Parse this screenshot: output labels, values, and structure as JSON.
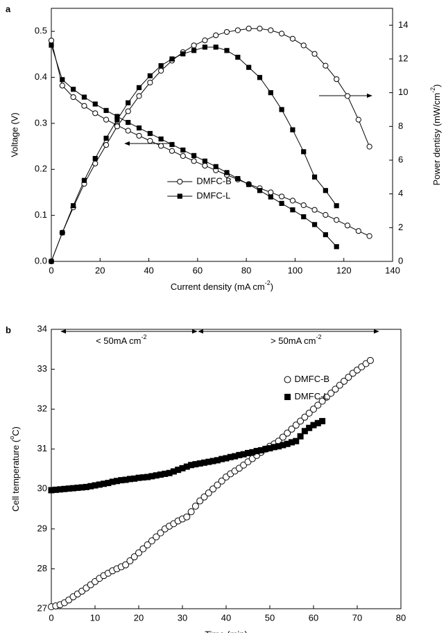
{
  "chart_data": [
    {
      "type": "line",
      "label": "a",
      "xlabel": [
        "Current density (mA cm",
        "-2",
        ")"
      ],
      "ylabel": "Voltage (V)",
      "y2label": [
        "Power dentisy (mW/cm",
        "-2",
        ")"
      ],
      "xlim": [
        0,
        140
      ],
      "xticks": [
        0,
        20,
        40,
        60,
        80,
        100,
        120,
        140
      ],
      "ylim": [
        0,
        0.55
      ],
      "yticks": [
        {
          "value": 0,
          "label": "0.0"
        },
        0.1,
        0.2,
        0.3,
        0.4,
        0.5
      ],
      "y2lim": [
        0,
        15
      ],
      "y2ticks": [
        0,
        2,
        4,
        6,
        8,
        10,
        12,
        14
      ],
      "legend": "lower center",
      "series": [
        {
          "name": "DMFC-B",
          "color": "#000000",
          "marker": "circle-open",
          "axis": "y",
          "x": [
            0,
            4.5,
            9,
            13.5,
            18,
            22.5,
            27,
            31.5,
            36,
            40.5,
            45,
            49.5,
            54,
            58.5,
            63,
            67.5,
            72,
            76.5,
            81,
            85.5,
            90,
            94.5,
            99,
            103.5,
            108,
            112.5,
            117,
            121.5,
            126,
            130.5
          ],
          "values": [
            0.48,
            0.382,
            0.357,
            0.338,
            0.322,
            0.308,
            0.296,
            0.284,
            0.273,
            0.262,
            0.251,
            0.24,
            0.229,
            0.218,
            0.208,
            0.198,
            0.188,
            0.178,
            0.168,
            0.159,
            0.15,
            0.141,
            0.132,
            0.122,
            0.112,
            0.101,
            0.09,
            0.078,
            0.066,
            0.055
          ]
        },
        {
          "name": "DMFC-L",
          "color": "#000000",
          "marker": "square",
          "axis": "y",
          "x": [
            0,
            4.5,
            9,
            13.5,
            18,
            22.5,
            27,
            31.5,
            36,
            40.5,
            45,
            49.5,
            54,
            58.5,
            63,
            67.5,
            72,
            76.5,
            81,
            85.5,
            90,
            94.5,
            99,
            103.5,
            108,
            112.5,
            117
          ],
          "values": [
            0.47,
            0.395,
            0.374,
            0.357,
            0.342,
            0.328,
            0.315,
            0.302,
            0.29,
            0.278,
            0.266,
            0.254,
            0.242,
            0.23,
            0.218,
            0.206,
            0.193,
            0.18,
            0.167,
            0.154,
            0.14,
            0.126,
            0.112,
            0.097,
            0.08,
            0.058,
            0.032
          ]
        },
        {
          "name": "DMFC-B",
          "color": "#000000",
          "marker": "circle-open",
          "axis": "y2",
          "x": [
            0,
            4.5,
            9,
            13.5,
            18,
            22.5,
            27,
            31.5,
            36,
            40.5,
            45,
            49.5,
            54,
            58.5,
            63,
            67.5,
            72,
            76.5,
            81,
            85.5,
            90,
            94.5,
            99,
            103.5,
            108,
            112.5,
            117,
            121.5,
            126,
            130.5
          ],
          "values": [
            0,
            1.7,
            3.2,
            4.6,
            5.8,
            6.9,
            8.0,
            8.9,
            9.8,
            10.6,
            11.3,
            11.9,
            12.4,
            12.8,
            13.1,
            13.4,
            13.6,
            13.7,
            13.8,
            13.8,
            13.7,
            13.5,
            13.2,
            12.8,
            12.3,
            11.6,
            10.8,
            9.8,
            8.4,
            6.8
          ]
        },
        {
          "name": "DMFC-L",
          "color": "#000000",
          "marker": "square",
          "axis": "y2",
          "x": [
            0,
            4.5,
            9,
            13.5,
            18,
            22.5,
            27,
            31.5,
            36,
            40.5,
            45,
            49.5,
            54,
            58.5,
            63,
            67.5,
            72,
            76.5,
            81,
            85.5,
            90,
            94.5,
            99,
            103.5,
            108,
            112.5,
            117
          ],
          "values": [
            0,
            1.7,
            3.3,
            4.8,
            6.1,
            7.3,
            8.4,
            9.4,
            10.3,
            11.0,
            11.6,
            12.0,
            12.3,
            12.5,
            12.7,
            12.7,
            12.5,
            12.1,
            11.5,
            10.9,
            10.0,
            9.0,
            7.8,
            6.5,
            5.0,
            4.2,
            3.3
          ]
        }
      ]
    },
    {
      "type": "scatter",
      "label": "b",
      "xlabel": "Time (min)",
      "ylabel": [
        "Cell temperature (",
        "o",
        "C)"
      ],
      "xlim": [
        0,
        80
      ],
      "xticks": [
        0,
        10,
        20,
        30,
        40,
        50,
        60,
        70,
        80
      ],
      "ylim": [
        27,
        34
      ],
      "yticks": [
        27,
        28,
        29,
        30,
        31,
        32,
        33,
        34
      ],
      "legend": "center right",
      "annotations": [
        {
          "text": "< 50mA cm",
          "sup": "-2"
        },
        {
          "text": "> 50mA cm",
          "sup": "-2"
        }
      ],
      "series": [
        {
          "name": "DMFC-B",
          "color": "#000000",
          "marker": "circle-open",
          "x": [
            0,
            1,
            2,
            3,
            4,
            5,
            6,
            7,
            8,
            9,
            10,
            11,
            12,
            13,
            14,
            15,
            16,
            17,
            18,
            19,
            20,
            21,
            22,
            23,
            24,
            25,
            26,
            27,
            28,
            29,
            30,
            31,
            32,
            33,
            34,
            35,
            36,
            37,
            38,
            39,
            40,
            41,
            42,
            43,
            44,
            45,
            46,
            47,
            48,
            49,
            50,
            51,
            52,
            53,
            54,
            55,
            56,
            57,
            58,
            59,
            60,
            61,
            62,
            63,
            64,
            65,
            66,
            67,
            68,
            69,
            70,
            71,
            72,
            73
          ],
          "values": [
            27.05,
            27.07,
            27.1,
            27.15,
            27.22,
            27.3,
            27.37,
            27.44,
            27.52,
            27.6,
            27.68,
            27.76,
            27.83,
            27.89,
            27.95,
            28.0,
            28.05,
            28.1,
            28.2,
            28.3,
            28.4,
            28.5,
            28.6,
            28.7,
            28.8,
            28.9,
            29.0,
            29.07,
            29.13,
            29.2,
            29.25,
            29.3,
            29.43,
            29.57,
            29.7,
            29.8,
            29.9,
            30.0,
            30.1,
            30.2,
            30.3,
            30.38,
            30.45,
            30.52,
            30.6,
            30.68,
            30.76,
            30.84,
            30.92,
            31.0,
            31.07,
            31.13,
            31.2,
            31.3,
            31.4,
            31.5,
            31.6,
            31.7,
            31.8,
            31.9,
            32.0,
            32.1,
            32.2,
            32.3,
            32.4,
            32.5,
            32.6,
            32.7,
            32.8,
            32.9,
            32.98,
            33.06,
            33.14,
            33.22
          ]
        },
        {
          "name": "DMFC-L",
          "color": "#000000",
          "marker": "square",
          "x": [
            0,
            1,
            2,
            3,
            4,
            5,
            6,
            7,
            8,
            9,
            10,
            11,
            12,
            13,
            14,
            15,
            16,
            17,
            18,
            19,
            20,
            21,
            22,
            23,
            24,
            25,
            26,
            27,
            28,
            29,
            30,
            31,
            32,
            33,
            34,
            35,
            36,
            37,
            38,
            39,
            40,
            41,
            42,
            43,
            44,
            45,
            46,
            47,
            48,
            49,
            50,
            51,
            52,
            53,
            54,
            55,
            56,
            57,
            58,
            59,
            60,
            61,
            62
          ],
          "values": [
            29.97,
            29.98,
            29.99,
            30.0,
            30.01,
            30.02,
            30.03,
            30.04,
            30.05,
            30.07,
            30.09,
            30.11,
            30.13,
            30.15,
            30.18,
            30.2,
            30.22,
            30.23,
            30.25,
            30.26,
            30.28,
            30.29,
            30.3,
            30.32,
            30.34,
            30.36,
            30.38,
            30.4,
            30.44,
            30.48,
            30.52,
            30.56,
            30.6,
            30.62,
            30.64,
            30.66,
            30.68,
            30.7,
            30.72,
            30.75,
            30.77,
            30.8,
            30.82,
            30.85,
            30.87,
            30.9,
            30.92,
            30.95,
            30.97,
            31.0,
            31.02,
            31.05,
            31.07,
            31.1,
            31.13,
            31.17,
            31.2,
            31.32,
            31.45,
            31.53,
            31.6,
            31.65,
            31.7
          ]
        }
      ]
    }
  ]
}
